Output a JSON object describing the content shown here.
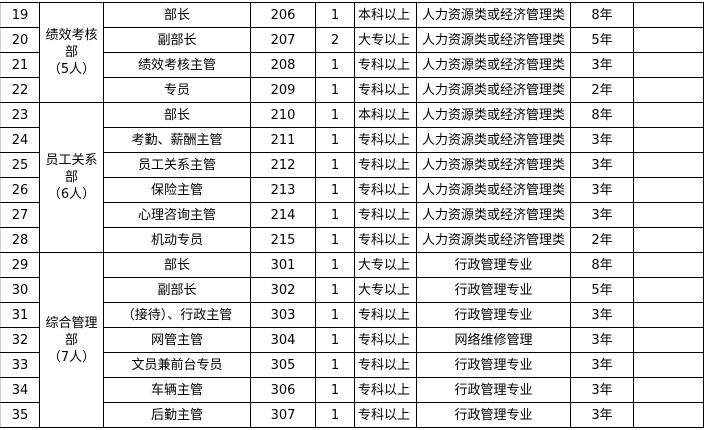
{
  "groups": [
    {
      "dept": [
        "绩效考核",
        "部",
        "（5人）"
      ],
      "rows": [
        {
          "no": "19",
          "position": "部长",
          "code": "206",
          "count": "1",
          "education": "本科以上",
          "major": "人力资源类或经济管理类",
          "years": "8年"
        },
        {
          "no": "20",
          "position": "副部长",
          "code": "207",
          "count": "2",
          "education": "大专以上",
          "major": "人力资源类或经济管理类",
          "years": "5年"
        },
        {
          "no": "21",
          "position": "绩效考核主管",
          "code": "208",
          "count": "1",
          "education": "专科以上",
          "major": "人力资源类或经济管理类",
          "years": "3年"
        },
        {
          "no": "22",
          "position": "专员",
          "code": "209",
          "count": "1",
          "education": "专科以上",
          "major": "人力资源类或经济管理类",
          "years": "2年"
        }
      ]
    },
    {
      "dept": [
        "员工关系",
        "部",
        "（6人）"
      ],
      "rows": [
        {
          "no": "23",
          "position": "部长",
          "code": "210",
          "count": "1",
          "education": "本科以上",
          "major": "人力资源类或经济管理类",
          "years": "8年"
        },
        {
          "no": "24",
          "position": "考勤、薪酬主管",
          "code": "211",
          "count": "1",
          "education": "专科以上",
          "major": "人力资源类或经济管理类",
          "years": "3年"
        },
        {
          "no": "25",
          "position": "员工关系主管",
          "code": "212",
          "count": "1",
          "education": "专科以上",
          "major": "人力资源类或经济管理类",
          "years": "3年"
        },
        {
          "no": "26",
          "position": "保险主管",
          "code": "213",
          "count": "1",
          "education": "专科以上",
          "major": "人力资源类或经济管理类",
          "years": "3年"
        },
        {
          "no": "27",
          "position": "心理咨询主管",
          "code": "214",
          "count": "1",
          "education": "专科以上",
          "major": "人力资源类或经济管理类",
          "years": "3年"
        },
        {
          "no": "28",
          "position": "机动专员",
          "code": "215",
          "count": "1",
          "education": "专科以上",
          "major": "人力资源类或经济管理类",
          "years": "2年"
        }
      ]
    },
    {
      "dept": [
        "综合管理",
        "部",
        "（7人）"
      ],
      "rows": [
        {
          "no": "29",
          "position": "部长",
          "code": "301",
          "count": "1",
          "education": "大专以上",
          "major": "行政管理专业",
          "years": "8年"
        },
        {
          "no": "30",
          "position": "副部长",
          "code": "302",
          "count": "1",
          "education": "大专以上",
          "major": "行政管理专业",
          "years": "5年"
        },
        {
          "no": "31",
          "position": "（接待）、行政主管",
          "code": "303",
          "count": "1",
          "education": "专科以上",
          "major": "行政管理专业",
          "years": "3年"
        },
        {
          "no": "32",
          "position": "网管主管",
          "code": "304",
          "count": "1",
          "education": "专科以上",
          "major": "网络维修管理",
          "years": "3年"
        },
        {
          "no": "33",
          "position": "文员兼前台专员",
          "code": "305",
          "count": "1",
          "education": "专科以上",
          "major": "行政管理专业",
          "years": "3年"
        },
        {
          "no": "34",
          "position": "车辆主管",
          "code": "306",
          "count": "1",
          "education": "专科以上",
          "major": "行政管理专业",
          "years": "3年"
        },
        {
          "no": "35",
          "position": "后勤主管",
          "code": "307",
          "count": "1",
          "education": "专科以上",
          "major": "行政管理专业",
          "years": "3年"
        }
      ]
    }
  ]
}
